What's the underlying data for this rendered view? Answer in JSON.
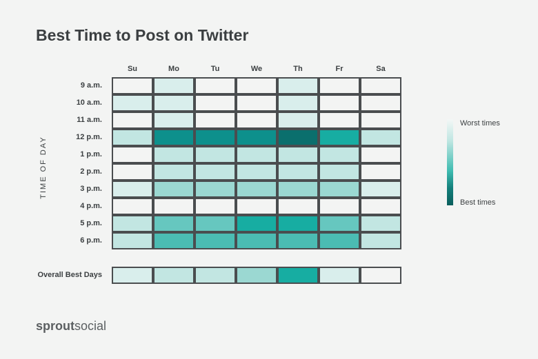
{
  "title": "Best Time to Post on Twitter",
  "chart_data": {
    "type": "heatmap",
    "title": "Best Time to Post on Twitter",
    "ylabel": "TIME OF DAY",
    "days": [
      "Su",
      "Mo",
      "Tu",
      "We",
      "Th",
      "Fr",
      "Sa"
    ],
    "times": [
      "9 a.m.",
      "10 a.m.",
      "11 a.m.",
      "12 p.m.",
      "1 p.m.",
      "2 p.m.",
      "3 p.m.",
      "4 p.m.",
      "5 p.m.",
      "6 p.m."
    ],
    "values": [
      [
        0,
        1,
        0,
        0,
        1,
        0,
        0
      ],
      [
        1,
        1,
        0,
        0,
        1,
        0,
        0
      ],
      [
        0,
        1,
        0,
        0,
        1,
        0,
        0
      ],
      [
        2,
        7,
        7,
        7,
        8,
        6,
        2
      ],
      [
        0,
        2,
        2,
        2,
        2,
        2,
        0
      ],
      [
        0,
        2,
        2,
        2,
        2,
        2,
        0
      ],
      [
        1,
        3,
        3,
        3,
        3,
        3,
        1
      ],
      [
        0,
        0,
        0,
        0,
        0,
        0,
        0
      ],
      [
        2,
        4,
        4,
        6,
        6,
        4,
        2
      ],
      [
        2,
        5,
        5,
        5,
        5,
        5,
        2
      ]
    ],
    "overall_label": "Overall Best Days",
    "overall_values": [
      1,
      2,
      2,
      3,
      6,
      1,
      0
    ],
    "scale_colors": [
      "#f3f4f3",
      "#d9eeec",
      "#c2e6e2",
      "#9bd8d2",
      "#66c7bf",
      "#4bbcb3",
      "#17ada2",
      "#0d908c",
      "#0b6f6d"
    ],
    "legend": {
      "top": "Worst times",
      "bottom": "Best times"
    }
  },
  "brand": {
    "part1": "sprout",
    "part2": "social"
  }
}
